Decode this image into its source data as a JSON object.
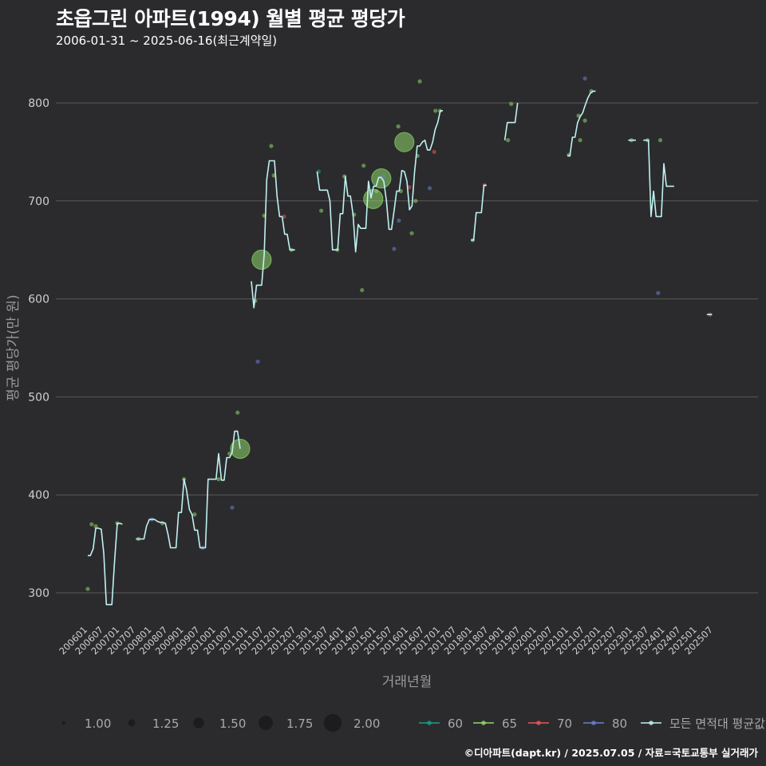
{
  "title": "초읍그린 아파트(1994) 월별 평균 평당가",
  "subtitle": "2006-01-31 ~ 2025-06-16(최근계약일)",
  "caption": "©디아파트(dapt.kr) / 2025.07.05 / 자료=국토교통부 실거래가",
  "colors": {
    "background": "#2b2b2d",
    "grid": "#5a5a5a",
    "line": "#bff1f1",
    "s60": "#1b9e8a",
    "s65": "#8fd86b",
    "s70": "#e8575a",
    "s80": "#6a7fcf"
  },
  "chart_data": {
    "type": "line",
    "title": "초읍그린 아파트(1994) 월별 평균 평당가",
    "xlabel": "거래년월",
    "ylabel": "평균 평당가(만 원)",
    "ylim": [
      260,
      840
    ],
    "yticks": [
      300,
      400,
      500,
      600,
      700,
      800
    ],
    "xticks": [
      "200601",
      "200607",
      "200701",
      "200707",
      "200801",
      "200807",
      "200901",
      "200907",
      "201001",
      "201007",
      "201101",
      "201107",
      "201201",
      "201207",
      "201301",
      "201307",
      "201401",
      "201407",
      "201501",
      "201507",
      "201601",
      "201607",
      "201701",
      "201707",
      "201801",
      "201807",
      "201901",
      "201907",
      "202001",
      "202007",
      "202101",
      "202107",
      "202201",
      "202207",
      "202301",
      "202307",
      "202401",
      "202407",
      "202501",
      "202507"
    ],
    "size_legend": {
      "title": "",
      "values": [
        "1.00",
        "1.25",
        "1.50",
        "1.75",
        "2.00"
      ]
    },
    "color_legend": {
      "values": [
        "60",
        "65",
        "70",
        "80",
        "모든 면적대 평균값"
      ]
    },
    "series_line": {
      "name": "모든 면적대 평균값",
      "segments": [
        [
          [
            2006.0,
            338
          ],
          [
            2006.08,
            338
          ],
          [
            2006.17,
            345
          ],
          [
            2006.25,
            366
          ],
          [
            2006.33,
            366
          ],
          [
            2006.42,
            365
          ],
          [
            2006.5,
            340
          ],
          [
            2006.58,
            288
          ],
          [
            2006.67,
            288
          ],
          [
            2006.75,
            288
          ],
          [
            2006.83,
            330
          ],
          [
            2006.92,
            371
          ],
          [
            2007.0,
            371
          ],
          [
            2007.08,
            370
          ]
        ],
        [
          [
            2007.5,
            355
          ],
          [
            2007.58,
            355
          ],
          [
            2007.67,
            355
          ],
          [
            2007.75,
            355
          ],
          [
            2007.83,
            368
          ],
          [
            2007.92,
            375
          ],
          [
            2008.0,
            375
          ],
          [
            2008.08,
            375
          ],
          [
            2008.17,
            373
          ],
          [
            2008.25,
            372
          ],
          [
            2008.33,
            372
          ],
          [
            2008.42,
            371
          ],
          [
            2008.5,
            360
          ],
          [
            2008.58,
            346
          ],
          [
            2008.67,
            346
          ],
          [
            2008.75,
            346
          ],
          [
            2008.83,
            382
          ],
          [
            2008.92,
            382
          ],
          [
            2009.0,
            416
          ],
          [
            2009.08,
            405
          ],
          [
            2009.17,
            385
          ],
          [
            2009.25,
            380
          ],
          [
            2009.33,
            364
          ],
          [
            2009.42,
            364
          ],
          [
            2009.5,
            346
          ],
          [
            2009.58,
            346
          ],
          [
            2009.67,
            346
          ],
          [
            2009.75,
            416
          ],
          [
            2009.83,
            416
          ],
          [
            2009.92,
            416
          ],
          [
            2010.0,
            416
          ],
          [
            2010.08,
            442
          ],
          [
            2010.17,
            415
          ],
          [
            2010.25,
            415
          ],
          [
            2010.33,
            438
          ],
          [
            2010.42,
            438
          ],
          [
            2010.5,
            443
          ],
          [
            2010.58,
            465
          ],
          [
            2010.67,
            465
          ],
          [
            2010.75,
            447
          ]
        ],
        [
          [
            2011.1,
            618
          ],
          [
            2011.18,
            591
          ],
          [
            2011.26,
            614
          ],
          [
            2011.34,
            614
          ],
          [
            2011.42,
            614
          ],
          [
            2011.5,
            645
          ],
          [
            2011.58,
            722
          ],
          [
            2011.66,
            741
          ],
          [
            2011.74,
            741
          ],
          [
            2011.82,
            741
          ],
          [
            2011.9,
            705
          ],
          [
            2011.98,
            684
          ],
          [
            2012.06,
            684
          ],
          [
            2012.14,
            666
          ],
          [
            2012.22,
            666
          ],
          [
            2012.3,
            650
          ],
          [
            2012.38,
            650
          ],
          [
            2012.46,
            650
          ]
        ],
        [
          [
            2013.15,
            730
          ],
          [
            2013.23,
            711
          ],
          [
            2013.31,
            711
          ],
          [
            2013.39,
            711
          ],
          [
            2013.47,
            711
          ],
          [
            2013.55,
            700
          ],
          [
            2013.63,
            650
          ],
          [
            2013.71,
            650
          ],
          [
            2013.79,
            650
          ],
          [
            2013.87,
            687
          ],
          [
            2013.95,
            687
          ],
          [
            2014.03,
            725
          ],
          [
            2014.11,
            705
          ],
          [
            2014.19,
            705
          ],
          [
            2014.27,
            686
          ],
          [
            2014.35,
            648
          ],
          [
            2014.43,
            676
          ],
          [
            2014.51,
            672
          ],
          [
            2014.59,
            672
          ],
          [
            2014.67,
            672
          ],
          [
            2014.75,
            720
          ],
          [
            2014.83,
            703
          ],
          [
            2014.91,
            715
          ],
          [
            2014.99,
            715
          ],
          [
            2015.07,
            724
          ],
          [
            2015.15,
            724
          ],
          [
            2015.23,
            720
          ],
          [
            2015.31,
            700
          ],
          [
            2015.39,
            671
          ],
          [
            2015.47,
            671
          ],
          [
            2015.55,
            690
          ],
          [
            2015.63,
            710
          ],
          [
            2015.71,
            710
          ],
          [
            2015.79,
            731
          ],
          [
            2015.87,
            730
          ],
          [
            2015.95,
            720
          ],
          [
            2016.03,
            691
          ],
          [
            2016.11,
            695
          ],
          [
            2016.19,
            730
          ],
          [
            2016.27,
            756
          ],
          [
            2016.35,
            756
          ],
          [
            2016.43,
            760
          ],
          [
            2016.51,
            762
          ],
          [
            2016.59,
            752
          ],
          [
            2016.67,
            752
          ],
          [
            2016.75,
            760
          ],
          [
            2016.83,
            773
          ],
          [
            2016.91,
            780
          ],
          [
            2016.99,
            792
          ],
          [
            2017.07,
            792
          ]
        ],
        [
          [
            2017.95,
            660
          ],
          [
            2018.03,
            660
          ],
          [
            2018.11,
            688
          ],
          [
            2018.19,
            688
          ],
          [
            2018.27,
            688
          ],
          [
            2018.35,
            716
          ],
          [
            2018.43,
            716
          ]
        ],
        [
          [
            2019.0,
            762
          ],
          [
            2019.08,
            780
          ],
          [
            2019.16,
            780
          ],
          [
            2019.24,
            780
          ],
          [
            2019.32,
            780
          ],
          [
            2019.4,
            800
          ]
        ],
        [
          [
            2020.95,
            746
          ],
          [
            2021.03,
            746
          ],
          [
            2021.11,
            765
          ],
          [
            2021.19,
            765
          ],
          [
            2021.27,
            780
          ],
          [
            2021.35,
            786
          ],
          [
            2021.43,
            790
          ],
          [
            2021.51,
            798
          ],
          [
            2021.59,
            805
          ],
          [
            2021.67,
            810
          ],
          [
            2021.75,
            812
          ],
          [
            2021.83,
            812
          ]
        ],
        [
          [
            2022.85,
            762
          ],
          [
            2022.93,
            762
          ],
          [
            2023.01,
            762
          ],
          [
            2023.09,
            762
          ]
        ],
        [
          [
            2023.32,
            762
          ],
          [
            2023.4,
            762
          ],
          [
            2023.48,
            762
          ],
          [
            2023.56,
            684
          ],
          [
            2023.64,
            710
          ],
          [
            2023.72,
            684
          ],
          [
            2023.8,
            684
          ],
          [
            2023.88,
            684
          ],
          [
            2023.96,
            738
          ],
          [
            2024.04,
            715
          ],
          [
            2024.12,
            715
          ],
          [
            2024.2,
            715
          ],
          [
            2024.28,
            715
          ]
        ],
        [
          [
            2025.3,
            584
          ],
          [
            2025.38,
            584
          ],
          [
            2025.46,
            584
          ]
        ]
      ]
    },
    "scatter_points": [
      {
        "x": 2006.0,
        "y": 304,
        "s": 1.0,
        "c": "65"
      },
      {
        "x": 2006.25,
        "y": 368,
        "s": 1.0,
        "c": "65"
      },
      {
        "x": 2006.12,
        "y": 370,
        "s": 1.0,
        "c": "65"
      },
      {
        "x": 2006.92,
        "y": 371,
        "s": 1.0,
        "c": "65"
      },
      {
        "x": 2007.58,
        "y": 355,
        "s": 1.0,
        "c": "65"
      },
      {
        "x": 2008.0,
        "y": 375,
        "s": 1.0,
        "c": "80"
      },
      {
        "x": 2008.33,
        "y": 371,
        "s": 1.0,
        "c": "65"
      },
      {
        "x": 2009.0,
        "y": 416,
        "s": 1.0,
        "c": "65"
      },
      {
        "x": 2009.33,
        "y": 380,
        "s": 1.0,
        "c": "65"
      },
      {
        "x": 2009.58,
        "y": 346,
        "s": 1.0,
        "c": "80"
      },
      {
        "x": 2010.08,
        "y": 416,
        "s": 1.0,
        "c": "65"
      },
      {
        "x": 2010.42,
        "y": 442,
        "s": 1.0,
        "c": "65"
      },
      {
        "x": 2010.5,
        "y": 387,
        "s": 1.0,
        "c": "80"
      },
      {
        "x": 2010.67,
        "y": 484,
        "s": 1.0,
        "c": "65"
      },
      {
        "x": 2010.75,
        "y": 447,
        "s": 2.0,
        "c": "65"
      },
      {
        "x": 2011.22,
        "y": 598,
        "s": 1.0,
        "c": "65"
      },
      {
        "x": 2011.3,
        "y": 536,
        "s": 1.0,
        "c": "80"
      },
      {
        "x": 2011.42,
        "y": 640,
        "s": 2.0,
        "c": "65"
      },
      {
        "x": 2011.5,
        "y": 685,
        "s": 1.0,
        "c": "65"
      },
      {
        "x": 2011.72,
        "y": 756,
        "s": 1.0,
        "c": "65"
      },
      {
        "x": 2011.8,
        "y": 726,
        "s": 1.0,
        "c": "65"
      },
      {
        "x": 2012.12,
        "y": 684,
        "s": 1.0,
        "c": "70"
      },
      {
        "x": 2012.35,
        "y": 650,
        "s": 1.0,
        "c": "65"
      },
      {
        "x": 2013.2,
        "y": 730,
        "s": 1.0,
        "c": "60"
      },
      {
        "x": 2013.28,
        "y": 690,
        "s": 1.0,
        "c": "65"
      },
      {
        "x": 2013.78,
        "y": 650,
        "s": 1.0,
        "c": "65"
      },
      {
        "x": 2014.0,
        "y": 725,
        "s": 1.0,
        "c": "65"
      },
      {
        "x": 2014.3,
        "y": 686,
        "s": 1.0,
        "c": "65"
      },
      {
        "x": 2014.55,
        "y": 609,
        "s": 1.0,
        "c": "65"
      },
      {
        "x": 2014.6,
        "y": 736,
        "s": 1.0,
        "c": "65"
      },
      {
        "x": 2014.9,
        "y": 702,
        "s": 2.0,
        "c": "65"
      },
      {
        "x": 2015.0,
        "y": 710,
        "s": 1.0,
        "c": "65"
      },
      {
        "x": 2015.15,
        "y": 723,
        "s": 2.0,
        "c": "65"
      },
      {
        "x": 2015.22,
        "y": 725,
        "s": 1.0,
        "c": "80"
      },
      {
        "x": 2015.55,
        "y": 651,
        "s": 1.0,
        "c": "80"
      },
      {
        "x": 2015.7,
        "y": 680,
        "s": 1.0,
        "c": "80"
      },
      {
        "x": 2015.68,
        "y": 776,
        "s": 1.0,
        "c": "65"
      },
      {
        "x": 2015.76,
        "y": 710,
        "s": 1.0,
        "c": "65"
      },
      {
        "x": 2015.87,
        "y": 760,
        "s": 2.0,
        "c": "65"
      },
      {
        "x": 2016.02,
        "y": 714,
        "s": 1.0,
        "c": "70"
      },
      {
        "x": 2016.1,
        "y": 667,
        "s": 1.0,
        "c": "65"
      },
      {
        "x": 2016.22,
        "y": 700,
        "s": 1.0,
        "c": "65"
      },
      {
        "x": 2016.28,
        "y": 746,
        "s": 1.0,
        "c": "65"
      },
      {
        "x": 2016.35,
        "y": 822,
        "s": 1.0,
        "c": "65"
      },
      {
        "x": 2016.66,
        "y": 713,
        "s": 1.0,
        "c": "80"
      },
      {
        "x": 2016.8,
        "y": 750,
        "s": 1.0,
        "c": "70"
      },
      {
        "x": 2016.84,
        "y": 792,
        "s": 1.0,
        "c": "65"
      },
      {
        "x": 2016.98,
        "y": 792,
        "s": 1.0,
        "c": "65"
      },
      {
        "x": 2018.0,
        "y": 660,
        "s": 1.0,
        "c": "65"
      },
      {
        "x": 2018.37,
        "y": 716,
        "s": 1.0,
        "c": "70"
      },
      {
        "x": 2019.1,
        "y": 762,
        "s": 1.0,
        "c": "65"
      },
      {
        "x": 2019.2,
        "y": 799,
        "s": 1.0,
        "c": "65"
      },
      {
        "x": 2021.0,
        "y": 747,
        "s": 1.0,
        "c": "65"
      },
      {
        "x": 2021.3,
        "y": 787,
        "s": 1.0,
        "c": "65"
      },
      {
        "x": 2021.35,
        "y": 762,
        "s": 1.0,
        "c": "65"
      },
      {
        "x": 2021.5,
        "y": 782,
        "s": 1.0,
        "c": "65"
      },
      {
        "x": 2021.5,
        "y": 825,
        "s": 1.0,
        "c": "80"
      },
      {
        "x": 2021.7,
        "y": 812,
        "s": 1.0,
        "c": "65"
      },
      {
        "x": 2022.95,
        "y": 762,
        "s": 1.0,
        "c": "65"
      },
      {
        "x": 2023.45,
        "y": 762,
        "s": 1.0,
        "c": "65"
      },
      {
        "x": 2023.78,
        "y": 606,
        "s": 1.0,
        "c": "80"
      },
      {
        "x": 2023.85,
        "y": 762,
        "s": 1.0,
        "c": "65"
      },
      {
        "x": 2025.4,
        "y": 584,
        "s": 1.0,
        "c": "70"
      }
    ]
  }
}
